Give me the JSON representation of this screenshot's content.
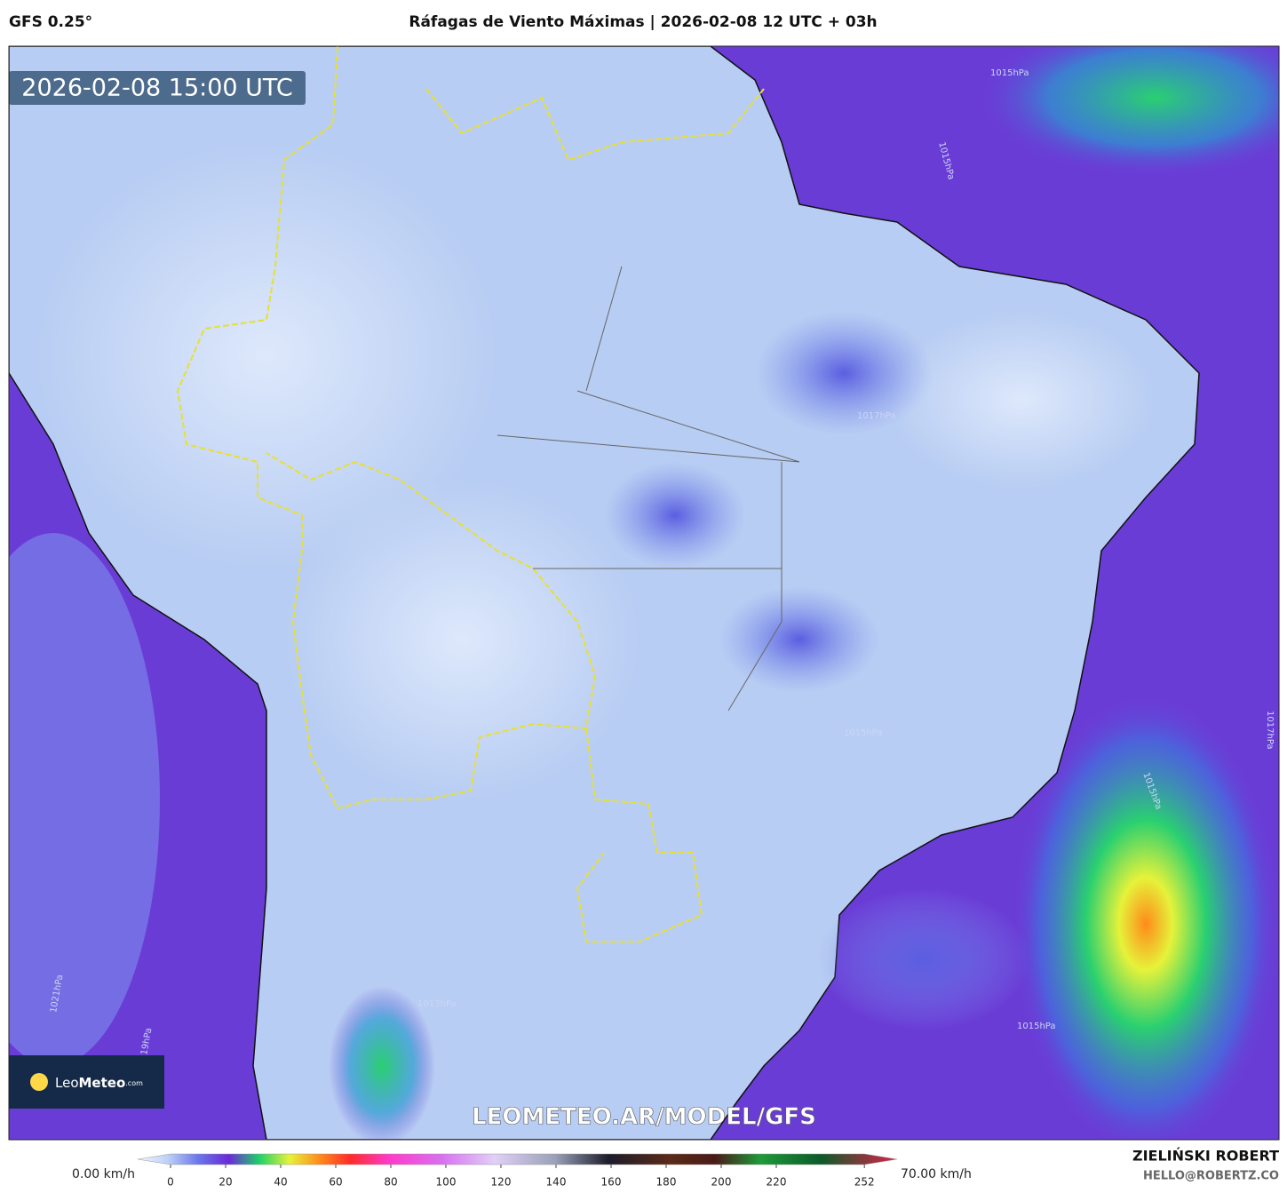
{
  "header": {
    "model": "GFS 0.25°",
    "title": "Ráfagas de Viento Máximas | 2026-02-08 12 UTC + 03h"
  },
  "map": {
    "valid_time": "2026-02-08 15:00 UTC",
    "url": "LEOMETEO.AR/MODEL/GFS",
    "isobars": [
      "1015hPa",
      "1015hPa",
      "1017hPa",
      "1015hPa",
      "1017hPa",
      "1015hPa",
      "1013hPa",
      "1015hPa",
      "1019hPa",
      "1021hPa"
    ]
  },
  "logo": {
    "leo": "Leo",
    "meteo": "Meteo",
    "com": ".com"
  },
  "colorbar": {
    "min_label": "0.00 km/h",
    "max_label": "70.00 km/h",
    "ticks": [
      0,
      20,
      40,
      60,
      80,
      100,
      120,
      140,
      160,
      180,
      200,
      220,
      252
    ]
  },
  "credit": {
    "name": "ZIELIŃSKI ROBERT",
    "email": "HELLO@ROBERTZ.CO"
  }
}
